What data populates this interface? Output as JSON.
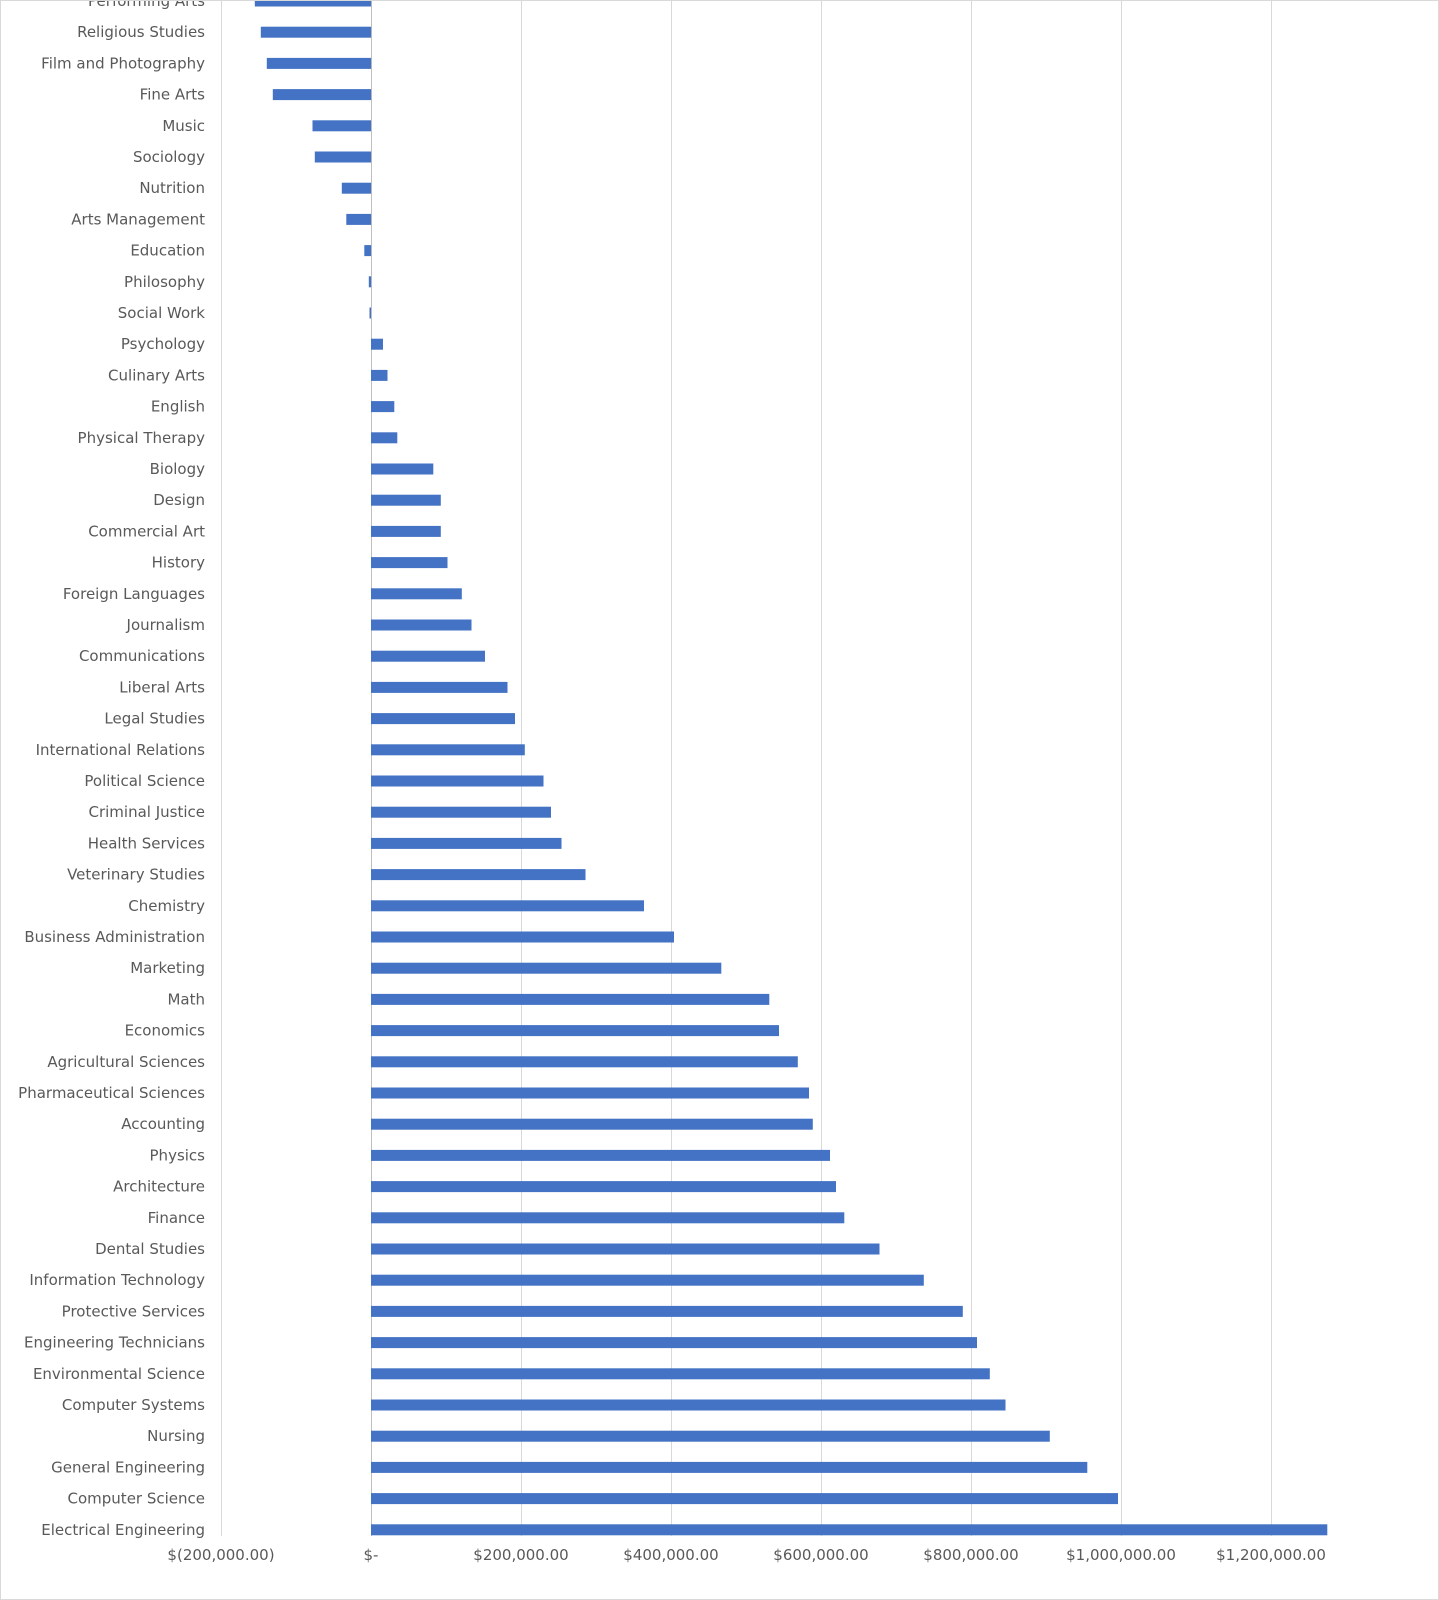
{
  "chart_data": {
    "type": "bar",
    "orientation": "horizontal",
    "categories": [
      "Performing Arts",
      "Religious Studies",
      "Film and Photography",
      "Fine Arts",
      "Music",
      "Sociology",
      "Nutrition",
      "Arts Management",
      "Education",
      "Philosophy",
      "Social Work",
      "Psychology",
      "Culinary Arts",
      "English",
      "Physical Therapy",
      "Biology",
      "Design",
      "Commercial Art",
      "History",
      "Foreign Languages",
      "Journalism",
      "Communications",
      "Liberal Arts",
      "Legal Studies",
      "International Relations",
      "Political Science",
      "Criminal Justice",
      "Health Services",
      "Veterinary Studies",
      "Chemistry",
      "Business Administration",
      "Marketing",
      "Math",
      "Economics",
      "Agricultural Sciences",
      "Pharmaceutical Sciences",
      "Accounting",
      "Physics",
      "Architecture",
      "Finance",
      "Dental Studies",
      "Information Technology",
      "Protective Services",
      "Engineering Technicians",
      "Environmental Science",
      "Computer Systems",
      "Nursing",
      "General Engineering",
      "Computer Science",
      "Electrical Engineering"
    ],
    "values": [
      -155000,
      -147000,
      -139000,
      -131000,
      -78000,
      -75000,
      -39000,
      -33000,
      -9000,
      -3000,
      -2000,
      16000,
      22000,
      31000,
      35000,
      83000,
      93000,
      93000,
      102000,
      121000,
      134000,
      152000,
      182000,
      192000,
      205000,
      230000,
      240000,
      254000,
      286000,
      364000,
      404000,
      467000,
      531000,
      544000,
      569000,
      584000,
      589000,
      612000,
      620000,
      631000,
      678000,
      737000,
      789000,
      808000,
      825000,
      846000,
      905000,
      955000,
      996000,
      1275000
    ],
    "xlim": [
      -200000,
      1200000
    ],
    "xticks": [
      -200000,
      0,
      200000,
      400000,
      600000,
      800000,
      1000000,
      1200000
    ],
    "xtick_labels": [
      "$(200,000.00)",
      "$-",
      "$200,000.00",
      "$400,000.00",
      "$600,000.00",
      "$800,000.00",
      "$1,000,000.00",
      "$1,200,000.00"
    ],
    "grid": "vertical",
    "legend": "none",
    "title": "",
    "xlabel": "",
    "ylabel": ""
  },
  "colors": {
    "bar": "#4472c4",
    "gridline": "#d9d9d9",
    "axis": "#bfbfbf",
    "text": "#595959"
  }
}
